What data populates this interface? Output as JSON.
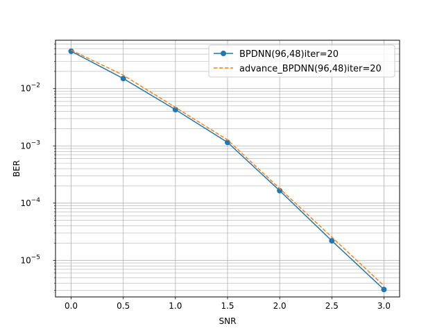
{
  "chart_data": {
    "type": "line",
    "title": "",
    "xlabel": "SNR",
    "ylabel": "BER",
    "xlim": [
      -0.15,
      3.15
    ],
    "ylim": [
      2.3e-06,
      0.07
    ],
    "yscale": "log",
    "grid": true,
    "grid_minor_y": true,
    "legend_position": "top-right",
    "x": [
      0.0,
      0.5,
      1.0,
      1.5,
      2.0,
      2.5,
      3.0
    ],
    "x_ticks": [
      0.0,
      0.5,
      1.0,
      1.5,
      2.0,
      2.5,
      3.0
    ],
    "x_tick_labels": [
      "0.0",
      "0.5",
      "1.0",
      "1.5",
      "2.0",
      "2.5",
      "3.0"
    ],
    "y_ticks": [
      {
        "value": 1e-05,
        "base": "10",
        "exp": "−5"
      },
      {
        "value": 0.0001,
        "base": "10",
        "exp": "−4"
      },
      {
        "value": 0.001,
        "base": "10",
        "exp": "−3"
      },
      {
        "value": 0.01,
        "base": "10",
        "exp": "−2"
      }
    ],
    "series": [
      {
        "name": "BPDNN(96,48)iter=20",
        "values": [
          0.045,
          0.015,
          0.0043,
          0.00115,
          0.000165,
          2.2e-05,
          3.1e-06
        ],
        "color": "#1f77b4",
        "style": "solid",
        "marker": "circle"
      },
      {
        "name": "advance_BPDNN(96,48)iter=20",
        "values": [
          0.047,
          0.0172,
          0.0047,
          0.00127,
          0.00018,
          2.55e-05,
          3.6e-06
        ],
        "color": "#ff7f0e",
        "style": "dashed",
        "marker": "none"
      }
    ]
  }
}
